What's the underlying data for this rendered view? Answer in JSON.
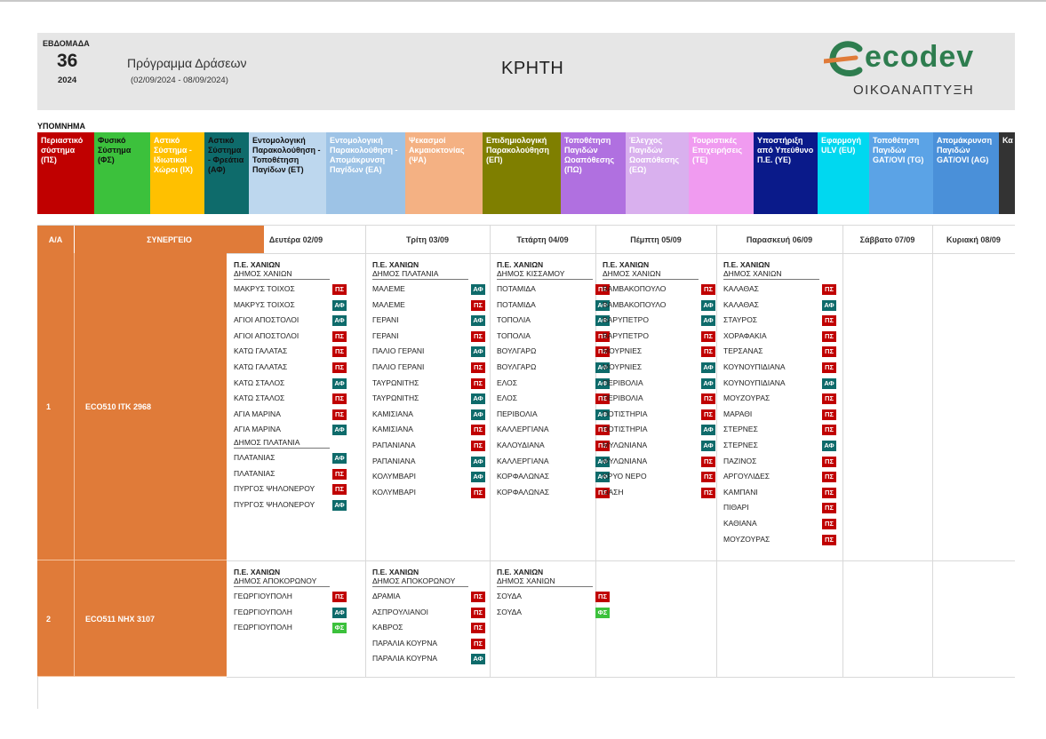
{
  "header": {
    "week_label": "ΕΒΔΟΜΑΔΑ",
    "week_number": "36",
    "year": "2024",
    "title": "Πρόγραμμα Δράσεων",
    "dates": "(02/09/2024 - 08/09/2024)",
    "region": "ΚΡΗΤΗ",
    "logo_word": "ecodev",
    "logo_sub": "ΟΙΚΟΑΝΑΠΤΥΞΗ"
  },
  "legend": {
    "title": "ΥΠΟΜΝΗΜΑ",
    "items": [
      {
        "label": "Περιαστικό σύστημα (ΠΣ)",
        "bg": "#c00000",
        "fg": "#ffffff"
      },
      {
        "label": "Φυσικό Σύστημα (ΦΣ)",
        "bg": "#3cc13c",
        "fg": "#111111"
      },
      {
        "label": "Αστικό Σύστημα - Ιδιωτικοί Χώροι (ΙΧ)",
        "bg": "#ffc000",
        "fg": "#ffffff"
      },
      {
        "label": "Αστικό Σύστημα - Φρεάτια (ΑΦ)",
        "bg": "#0e6b6b",
        "fg": "#111111"
      },
      {
        "label": "Εντομολογική Παρακολούθηση - Τοποθέτηση Παγίδων (ΕΤ)",
        "bg": "#bdd7ee",
        "fg": "#111111"
      },
      {
        "label": "Εντομολογική Παρακολούθηση - Απομάκρυνση Παγίδων (ΕΑ)",
        "bg": "#9dc3e6",
        "fg": "#ffffff"
      },
      {
        "label": "Ψεκασμοί Ακμαιοκτονίας (ΨΑ)",
        "bg": "#f4b183",
        "fg": "#ffffff"
      },
      {
        "label": "Επιδημιολογική Παρακολούθηση (ΕΠ)",
        "bg": "#7f7f00",
        "fg": "#ffffff"
      },
      {
        "label": "Τοποθέτηση Παγιδών Ωοαπόθεσης (ΠΩ)",
        "bg": "#b070e0",
        "fg": "#ffffff"
      },
      {
        "label": "Έλεγχος Παγιδών Ωοαπόθεσης (ΕΩ)",
        "bg": "#d9b0ee",
        "fg": "#ffffff"
      },
      {
        "label": "Τουριστικές Επιχειρήσεις (ΤΕ)",
        "bg": "#f09bf0",
        "fg": "#ffffff"
      },
      {
        "label": "Υποστήριξη από Υπεύθυνο Π.Ε. (ΥΕ)",
        "bg": "#0a1a8a",
        "fg": "#ffffff"
      },
      {
        "label": "Εφαρμογή ULV (EU)",
        "bg": "#00d8f0",
        "fg": "#ffffff"
      },
      {
        "label": "Τοποθέτηση Παγιδών GAT/OVI (TG)",
        "bg": "#5ba3e6",
        "fg": "#ffffff"
      },
      {
        "label": "Απομάκρυνση Παγιδών GAT/OVI (AG)",
        "bg": "#4a90d9",
        "fg": "#ffffff"
      },
      {
        "label": "Κα έλ (Κ)",
        "bg": "#333333",
        "fg": "#ffffff"
      }
    ]
  },
  "table": {
    "col_aa": "Α/Α",
    "col_team": "ΣΥΝΕΡΓΕΙΟ",
    "days": [
      "Δευτέρα 02/09",
      "Τρίτη 03/09",
      "Τετάρτη 04/09",
      "Πέμπτη 05/09",
      "Παρασκευή 06/09",
      "Σάββατο 07/09",
      "Κυριακή 08/09"
    ]
  },
  "badge_colors": {
    "ΠΣ": "#c00000",
    "ΑΦ": "#0e6b6b",
    "ΦΣ": "#3cc13c"
  },
  "rows": [
    {
      "aa": "1",
      "team": "ECO510  ΙΤΚ 2968",
      "days": [
        [
          {
            "h1": "Π.Ε. ΧΑΝΙΩΝ",
            "h2": "ΔΗΜΟΣ ΧΑΝΙΩΝ",
            "items": [
              {
                "n": "ΜΑΚΡΥΣ ΤΟΙΧΟΣ",
                "b": "ΠΣ"
              },
              {
                "n": "ΜΑΚΡΥΣ ΤΟΙΧΟΣ",
                "b": "ΑΦ"
              },
              {
                "n": "ΑΓΙΟΙ ΑΠΟΣΤΟΛΟΙ",
                "b": "ΑΦ"
              },
              {
                "n": "ΑΓΙΟΙ ΑΠΟΣΤΟΛΟΙ",
                "b": "ΠΣ"
              },
              {
                "n": "ΚΑΤΩ ΓΑΛΑΤΑΣ",
                "b": "ΠΣ"
              },
              {
                "n": "ΚΑΤΩ ΓΑΛΑΤΑΣ",
                "b": "ΠΣ"
              },
              {
                "n": "ΚΑΤΩ ΣΤΑΛΟΣ",
                "b": "ΑΦ"
              },
              {
                "n": "ΚΑΤΩ ΣΤΑΛΟΣ",
                "b": "ΠΣ"
              },
              {
                "n": "ΑΓΙΑ ΜΑΡΙΝΑ",
                "b": "ΠΣ"
              },
              {
                "n": "ΑΓΙΑ ΜΑΡΙΝΑ",
                "b": "ΑΦ"
              }
            ]
          },
          {
            "h1": "",
            "h2": "ΔΗΜΟΣ ΠΛΑΤΑΝΙΑ",
            "items": [
              {
                "n": "ΠΛΑΤΑΝΙΑΣ",
                "b": "ΑΦ"
              },
              {
                "n": "ΠΛΑΤΑΝΙΑΣ",
                "b": "ΠΣ"
              },
              {
                "n": "ΠΥΡΓΟΣ ΨΗΛΟΝΕΡΟΥ",
                "b": "ΠΣ"
              },
              {
                "n": "ΠΥΡΓΟΣ ΨΗΛΟΝΕΡΟΥ",
                "b": "ΑΦ"
              }
            ]
          }
        ],
        [
          {
            "h1": "Π.Ε. ΧΑΝΙΩΝ",
            "h2": "ΔΗΜΟΣ ΠΛΑΤΑΝΙΑ",
            "items": [
              {
                "n": "ΜΑΛΕΜΕ",
                "b": "ΑΦ"
              },
              {
                "n": "ΜΑΛΕΜΕ",
                "b": "ΠΣ"
              },
              {
                "n": "ΓΕΡΑΝΙ",
                "b": "ΑΦ"
              },
              {
                "n": "ΓΕΡΑΝΙ",
                "b": "ΠΣ"
              },
              {
                "n": "ΠΑΛΙΟ ΓΕΡΑΝΙ",
                "b": "ΑΦ"
              },
              {
                "n": "ΠΑΛΙΟ ΓΕΡΑΝΙ",
                "b": "ΠΣ"
              },
              {
                "n": "ΤΑΥΡΩΝΙΤΗΣ",
                "b": "ΠΣ"
              },
              {
                "n": "ΤΑΥΡΩΝΙΤΗΣ",
                "b": "ΑΦ"
              },
              {
                "n": "ΚΑΜΙΣΙΑΝΑ",
                "b": "ΑΦ"
              },
              {
                "n": "ΚΑΜΙΣΙΑΝΑ",
                "b": "ΠΣ"
              },
              {
                "n": "ΡΑΠΑΝΙΑΝΑ",
                "b": "ΠΣ"
              },
              {
                "n": "ΡΑΠΑΝΙΑΝΑ",
                "b": "ΑΦ"
              },
              {
                "n": "ΚΟΛΥΜΒΑΡΙ",
                "b": "ΑΦ"
              },
              {
                "n": "ΚΟΛΥΜΒΑΡΙ",
                "b": "ΠΣ"
              }
            ]
          }
        ],
        [
          {
            "h1": "Π.Ε. ΧΑΝΙΩΝ",
            "h2": "ΔΗΜΟΣ ΚΙΣΣΑΜΟΥ",
            "items": [
              {
                "n": "ΠΟΤΑΜΙΔΑ",
                "b": "ΠΣ"
              },
              {
                "n": "ΠΟΤΑΜΙΔΑ",
                "b": "ΑΦ"
              },
              {
                "n": "ΤΟΠΟΛΙΑ",
                "b": "ΑΦ"
              },
              {
                "n": "ΤΟΠΟΛΙΑ",
                "b": "ΠΣ"
              },
              {
                "n": "ΒΟΥΛΓΑΡΩ",
                "b": "ΠΣ"
              },
              {
                "n": "ΒΟΥΛΓΑΡΩ",
                "b": "ΑΦ"
              },
              {
                "n": "ΕΛΟΣ",
                "b": "ΑΦ"
              },
              {
                "n": "ΕΛΟΣ",
                "b": "ΠΣ"
              },
              {
                "n": "ΠΕΡΙΒΟΛΙΑ",
                "b": "ΑΦ"
              },
              {
                "n": "ΚΑΛΛΕΡΓΙΑΝΑ",
                "b": "ΠΣ"
              },
              {
                "n": "ΚΑΛΟΥΔΙΑΝΑ",
                "b": "ΠΣ"
              },
              {
                "n": "ΚΑΛΛΕΡΓΙΑΝΑ",
                "b": "ΑΦ"
              },
              {
                "n": "ΚΟΡΦΑΛΩΝΑΣ",
                "b": "ΑΦ"
              },
              {
                "n": "ΚΟΡΦΑΛΩΝΑΣ",
                "b": "ΠΣ"
              }
            ]
          }
        ],
        [
          {
            "h1": "Π.Ε. ΧΑΝΙΩΝ",
            "h2": "ΔΗΜΟΣ ΧΑΝΙΩΝ",
            "items": [
              {
                "n": "ΒΑΜΒΑΚΟΠΟΥΛΟ",
                "b": "ΠΣ"
              },
              {
                "n": "ΒΑΜΒΑΚΟΠΟΥΛΟ",
                "b": "ΑΦ"
              },
              {
                "n": "ΒΑΡΥΠΕΤΡΟ",
                "b": "ΑΦ"
              },
              {
                "n": "ΒΑΡΥΠΕΤΡΟ",
                "b": "ΠΣ"
              },
              {
                "n": "ΜΟΥΡΝΙΕΣ",
                "b": "ΠΣ"
              },
              {
                "n": "ΜΟΥΡΝΙΕΣ",
                "b": "ΑΦ"
              },
              {
                "n": "ΠΕΡΙΒΟΛΙΑ",
                "b": "ΑΦ"
              },
              {
                "n": "ΠΕΡΙΒΟΛΙΑ",
                "b": "ΠΣ"
              },
              {
                "n": "ΠΟΤΙΣΤΗΡΙΑ",
                "b": "ΠΣ"
              },
              {
                "n": "ΠΟΤΙΣΤΗΡΙΑ",
                "b": "ΑΦ"
              },
              {
                "n": "ΜΥΛΩΝΙΑΝΑ",
                "b": "ΑΦ"
              },
              {
                "n": "ΜΥΛΩΝΙΑΝΑ",
                "b": "ΠΣ"
              },
              {
                "n": "ΚΡΥΟ ΝΕΡΟ",
                "b": "ΠΣ"
              },
              {
                "n": "ΟΑΣΗ",
                "b": "ΠΣ"
              }
            ]
          }
        ],
        [
          {
            "h1": "Π.Ε. ΧΑΝΙΩΝ",
            "h2": "ΔΗΜΟΣ ΧΑΝΙΩΝ",
            "items": [
              {
                "n": "ΚΑΛΑΘΑΣ",
                "b": "ΠΣ"
              },
              {
                "n": "ΚΑΛΑΘΑΣ",
                "b": "ΑΦ"
              },
              {
                "n": "ΣΤΑΥΡΟΣ",
                "b": "ΠΣ"
              },
              {
                "n": "ΧΟΡΑΦΑΚΙΑ",
                "b": "ΠΣ"
              },
              {
                "n": "ΤΕΡΣΑΝΑΣ",
                "b": "ΠΣ"
              },
              {
                "n": "ΚΟΥΝΟΥΠΙΔΙΑΝΑ",
                "b": "ΠΣ"
              },
              {
                "n": "ΚΟΥΝΟΥΠΙΔΙΑΝΑ",
                "b": "ΑΦ"
              },
              {
                "n": "ΜΟΥΖΟΥΡΑΣ",
                "b": "ΠΣ"
              },
              {
                "n": "ΜΑΡΑΘΙ",
                "b": "ΠΣ"
              },
              {
                "n": "ΣΤΕΡΝΕΣ",
                "b": "ΠΣ"
              },
              {
                "n": "ΣΤΕΡΝΕΣ",
                "b": "ΑΦ"
              },
              {
                "n": "ΠΑΖΙΝΟΣ",
                "b": "ΠΣ"
              },
              {
                "n": "ΑΡΓΟΥΛΙΔΕΣ",
                "b": "ΠΣ"
              },
              {
                "n": "ΚΑΜΠΑΝΙ",
                "b": "ΠΣ"
              },
              {
                "n": "ΠΙΘΑΡΙ",
                "b": "ΠΣ"
              },
              {
                "n": "ΚΑΘΙΑΝΑ",
                "b": "ΠΣ"
              },
              {
                "n": "ΜΟΥΖΟΥΡΑΣ",
                "b": "ΠΣ"
              }
            ]
          }
        ],
        [],
        []
      ]
    },
    {
      "aa": "2",
      "team": "ECO511  ΝΗΧ 3107",
      "days": [
        [
          {
            "h1": "Π.Ε. ΧΑΝΙΩΝ",
            "h2": "ΔΗΜΟΣ ΑΠΟΚΟΡΩΝΟΥ",
            "items": [
              {
                "n": "ΓΕΩΡΓΙΟΥΠΟΛΗ",
                "b": "ΠΣ"
              },
              {
                "n": "ΓΕΩΡΓΙΟΥΠΟΛΗ",
                "b": "ΑΦ"
              },
              {
                "n": "ΓΕΩΡΓΙΟΥΠΟΛΗ",
                "b": "ΦΣ"
              }
            ]
          }
        ],
        [
          {
            "h1": "Π.Ε. ΧΑΝΙΩΝ",
            "h2": "ΔΗΜΟΣ ΑΠΟΚΟΡΩΝΟΥ",
            "items": [
              {
                "n": "ΔΡΑΜΙΑ",
                "b": "ΠΣ"
              },
              {
                "n": "ΑΣΠΡΟΥΛΙΑΝΟΙ",
                "b": "ΠΣ"
              },
              {
                "n": "ΚΑΒΡΟΣ",
                "b": "ΠΣ"
              },
              {
                "n": "ΠΑΡΑΛΙΑ ΚΟΥΡΝΑ",
                "b": "ΠΣ"
              },
              {
                "n": "ΠΑΡΑΛΙΑ ΚΟΥΡΝΑ",
                "b": "ΑΦ"
              }
            ]
          }
        ],
        [
          {
            "h1": "Π.Ε. ΧΑΝΙΩΝ",
            "h2": "ΔΗΜΟΣ ΧΑΝΙΩΝ",
            "items": [
              {
                "n": "ΣΟΥΔΑ",
                "b": "ΠΣ"
              },
              {
                "n": "ΣΟΥΔΑ",
                "b": "ΦΣ"
              }
            ]
          }
        ],
        [],
        [],
        [],
        []
      ]
    }
  ]
}
